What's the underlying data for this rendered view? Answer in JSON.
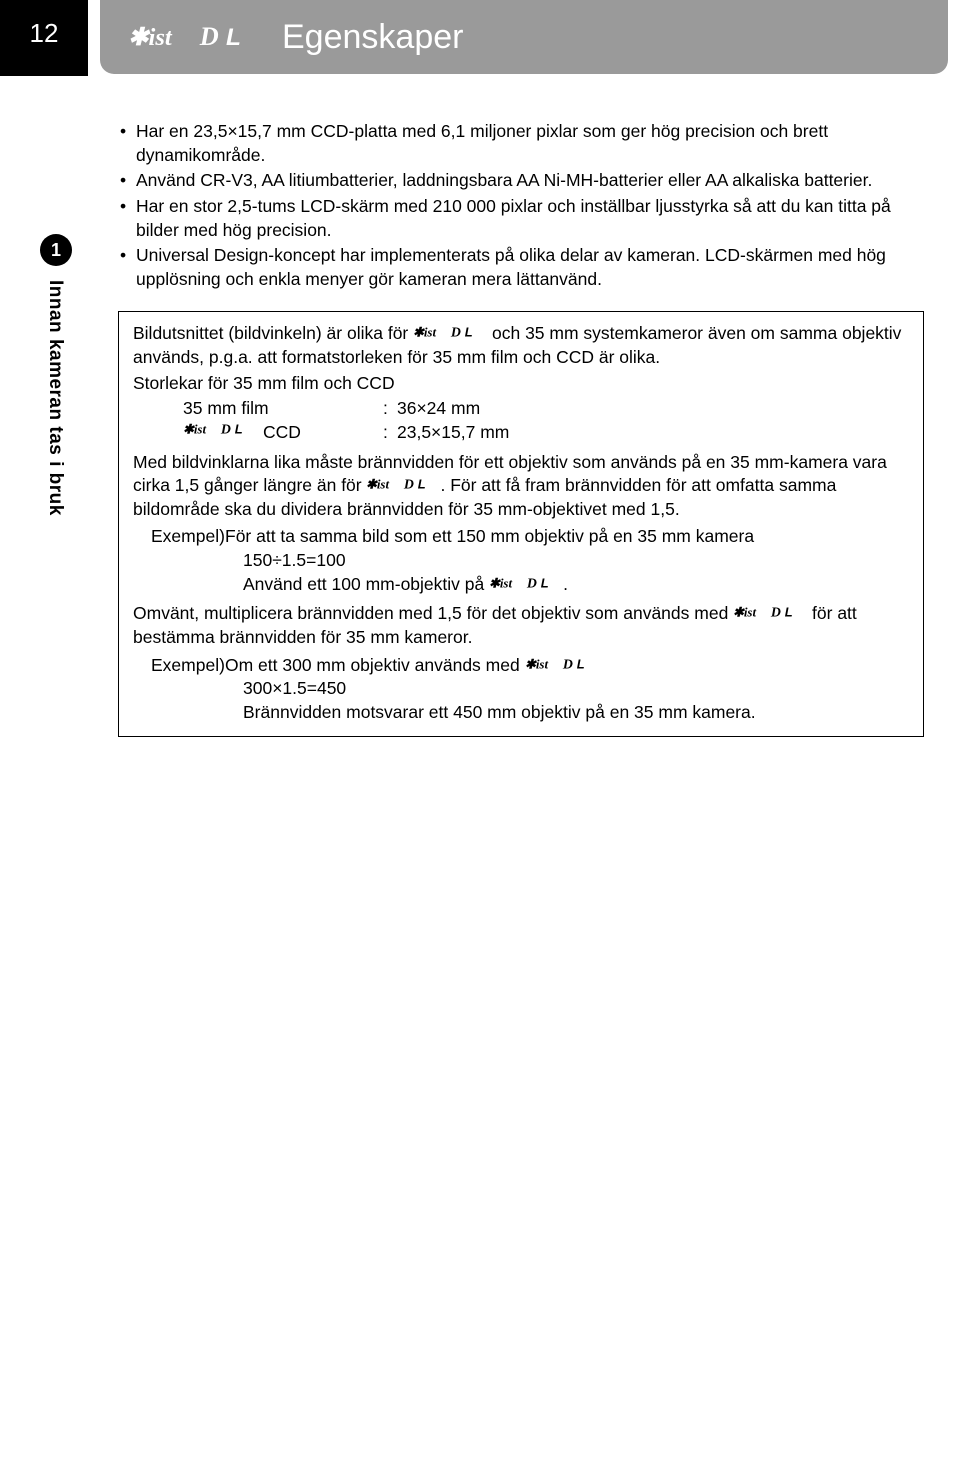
{
  "page_number": "12",
  "header": {
    "title": "Egenskaper",
    "logo_label": "*istDL"
  },
  "sidebar": {
    "section_number": "1",
    "vertical_text": "Innan kameran tas i bruk"
  },
  "bullets": [
    "Har en 23,5×15,7 mm CCD-platta med 6,1 miljoner pixlar som ger hög precision och brett dynamikområde.",
    "Använd CR-V3, AA litiumbatterier, laddningsbara AA Ni-MH-batterier eller AA alkaliska batterier.",
    "Har en stor 2,5-tums LCD-skärm med 210 000 pixlar och inställbar ljusstyrka så att du kan titta på bilder med hög precision.",
    "Universal Design-koncept har implementerats på olika delar av kameran. LCD-skärmen med hög upplösning och enkla menyer gör kameran mera lättanvänd."
  ],
  "box": {
    "intro_part1": "Bildutsnittet (bildvinkeln) är olika för ",
    "intro_part2": " och 35 mm systemkameror även om samma objektiv används, p.g.a. att formatstorleken för 35 mm film och CCD är olika.",
    "sizes_heading": "Storlekar för 35 mm film och CCD",
    "sizes": [
      {
        "label": "35 mm film",
        "value": "36×24 mm",
        "with_logo": false
      },
      {
        "label": "CCD",
        "value": "23,5×15,7 mm",
        "with_logo": true
      }
    ],
    "para2_part1": "Med bildvinklarna lika måste brännvidden för ett objektiv som används på en 35 mm-kamera vara cirka 1,5 gånger längre än för ",
    "para2_part2": ". För att få fram brännvidden för att omfatta samma bildområde ska du dividera brännvidden för 35 mm-objektivet med 1,5.",
    "example_label": "Exempel)",
    "example1_line1": "För att ta samma bild som ett 150 mm objektiv på en 35 mm kamera",
    "example1_line2": "150÷1.5=100",
    "example1_line3a": "Använd ett 100 mm-objektiv på ",
    "example1_line3b": ".",
    "para3_part1": "Omvänt, multiplicera brännvidden med 1,5 för det objektiv som används med ",
    "para3_part2": " för att bestämma brännvidden för 35 mm kameror.",
    "example2_line1a": "Om ett 300 mm objektiv används med ",
    "example2_line2": "300×1.5=450",
    "example2_line3": "Brännvidden motsvarar ett 450 mm objektiv på en 35 mm kamera."
  },
  "colors": {
    "header_bg": "#9a9a9a",
    "page_bg": "#000000",
    "text": "#000000"
  }
}
